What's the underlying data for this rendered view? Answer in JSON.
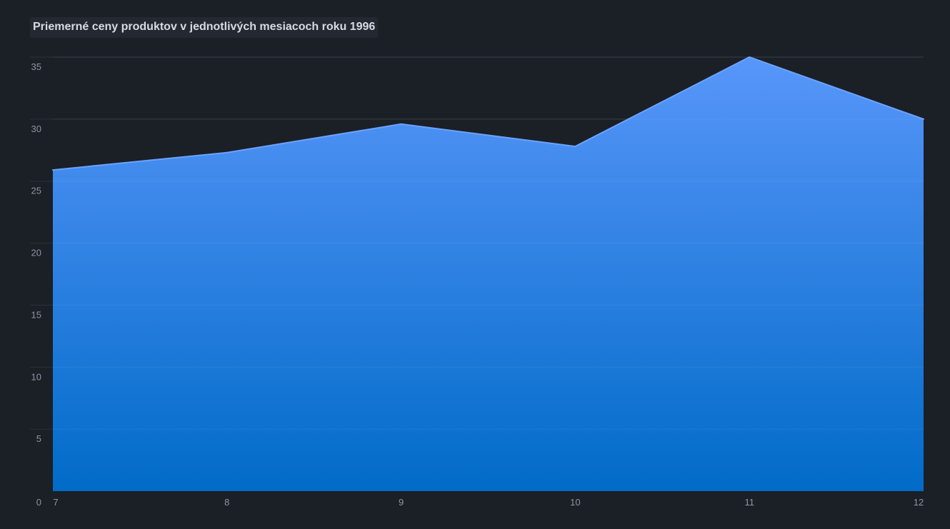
{
  "chart_data": {
    "type": "area",
    "title": "Priemerné ceny produktov v jednotlivých mesiacoch roku 1996",
    "xlabel": "",
    "ylabel": "",
    "x": [
      7,
      8,
      9,
      10,
      11,
      12
    ],
    "x_tick_labels": [
      "7",
      "8",
      "9",
      "10",
      "11",
      "12"
    ],
    "values": [
      25.9,
      27.3,
      29.6,
      27.8,
      35.0,
      30.0
    ],
    "y_tick_labels": [
      "0",
      "5",
      "10",
      "15",
      "20",
      "25",
      "30",
      "35"
    ],
    "y_ticks": [
      0,
      5,
      10,
      15,
      20,
      25,
      30,
      35
    ],
    "ylim": [
      0,
      35
    ],
    "xlim": [
      7,
      12
    ],
    "grid": true,
    "legend": "none",
    "colors": {
      "area_top": "#5896fa",
      "area_bottom": "#016bc8",
      "line": "#6aa3ff",
      "background": "#1b1f26",
      "grid": "#2c323b",
      "tick_text": "#8e96a3",
      "title_text": "#d7dbe2",
      "title_bg": "#232831"
    }
  }
}
